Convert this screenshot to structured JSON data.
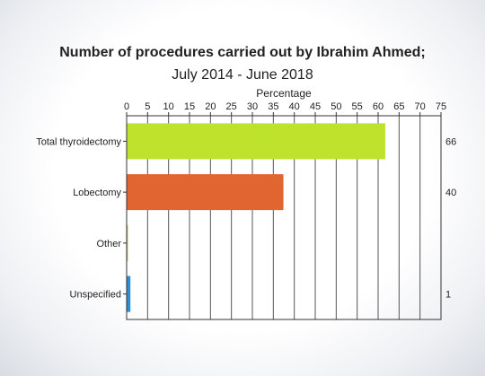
{
  "chart_data": {
    "type": "bar",
    "orientation": "horizontal",
    "title_lines": [
      "Number of procedures carried out by Ibrahim Ahmed;",
      "July 2014 - June 2018"
    ],
    "xlabel": "Percentage",
    "xlim": [
      0,
      75
    ],
    "xticks": [
      "0",
      "5",
      "10",
      "15",
      "20",
      "25",
      "30",
      "35",
      "40",
      "45",
      "50",
      "55",
      "60",
      "65",
      "70",
      "75"
    ],
    "categories": [
      "Total thyroidectomy",
      "Lobectomy",
      "Other",
      "Unspecified"
    ],
    "values": [
      61.7,
      37.4,
      0.3,
      0.9
    ],
    "counts": [
      "66",
      "40",
      "",
      "1"
    ],
    "colors": [
      "#bde32d",
      "#e06530",
      "#c9c060",
      "#2b8fd6"
    ],
    "grid": true,
    "axis_position": "top"
  }
}
